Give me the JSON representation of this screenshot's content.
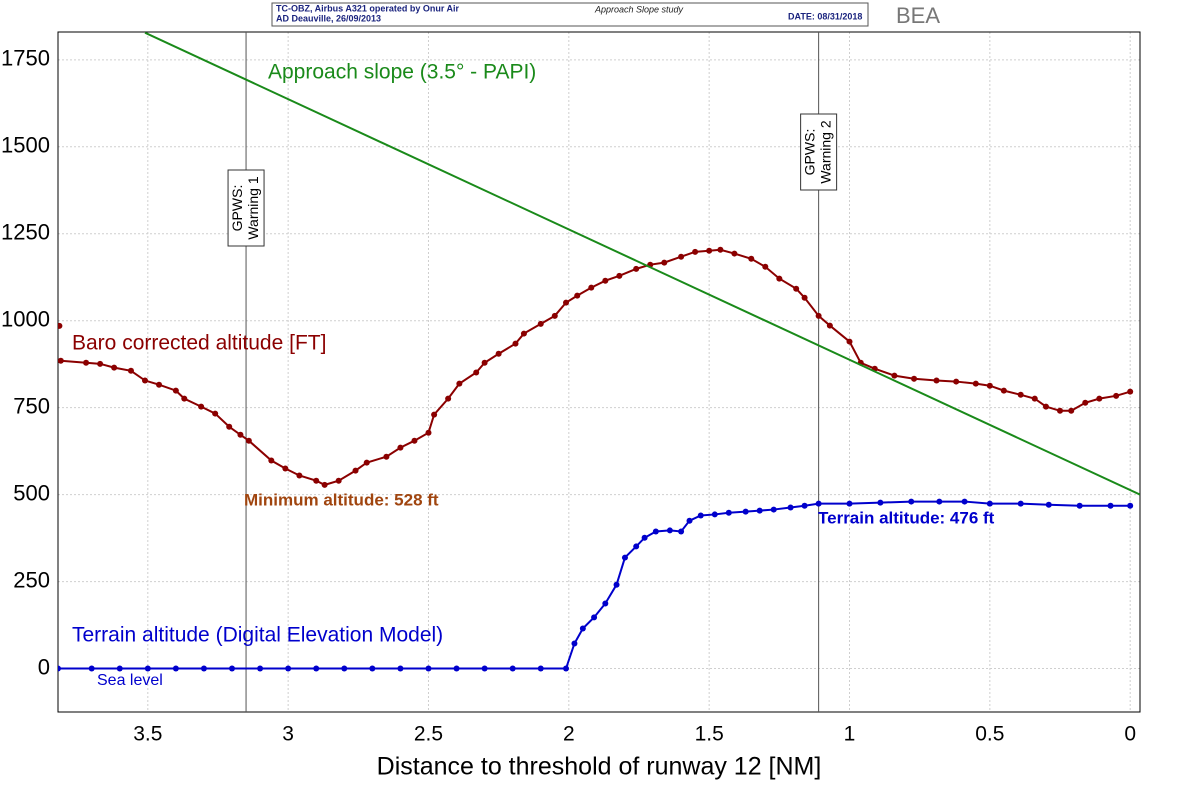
{
  "header": {
    "line1": "TC-OBZ, Airbus A321 operated by Onur Air",
    "line2": "AD Deauville, 26/09/2013",
    "study": "Approach Slope study",
    "date": "DATE: 08/31/2018",
    "logo": "BEA"
  },
  "chart_data": {
    "type": "line",
    "xlabel": "Distance to threshold of runway 12 [NM]",
    "xlim": [
      3.82,
      -0.035
    ],
    "ylim": [
      -125,
      1830
    ],
    "xticks": [
      3.5,
      3,
      2.5,
      2,
      1.5,
      1,
      0.5,
      0
    ],
    "yticks": [
      0,
      250,
      500,
      750,
      1000,
      1250,
      1500,
      1750
    ],
    "grid": true,
    "series": [
      {
        "name": "Baro corrected altitude [FT]",
        "color": "#8b0000",
        "marker": true,
        "x": [
          3.815,
          3.81,
          3.81,
          3.72,
          3.67,
          3.62,
          3.56,
          3.51,
          3.46,
          3.4,
          3.37,
          3.31,
          3.26,
          3.21,
          3.17,
          3.14,
          3.06,
          3.01,
          2.96,
          2.9,
          2.87,
          2.82,
          2.76,
          2.72,
          2.65,
          2.6,
          2.55,
          2.5,
          2.48,
          2.43,
          2.39,
          2.33,
          2.3,
          2.25,
          2.19,
          2.16,
          2.1,
          2.05,
          2.01,
          1.97,
          1.92,
          1.87,
          1.82,
          1.76,
          1.71,
          1.66,
          1.6,
          1.55,
          1.5,
          1.46,
          1.41,
          1.35,
          1.3,
          1.25,
          1.19,
          1.16,
          1.11,
          1.07,
          1.0,
          0.96,
          0.91,
          0.84,
          0.77,
          0.69,
          0.62,
          0.55,
          0.5,
          0.45,
          0.39,
          0.34,
          0.3,
          0.25,
          0.21,
          0.16,
          0.11,
          0.05,
          0.0
        ],
        "values": [
          985,
          null,
          885,
          879,
          876,
          865,
          856,
          828,
          816,
          799,
          776,
          753,
          733,
          695,
          672,
          655,
          598,
          575,
          555,
          540,
          528,
          540,
          569,
          592,
          609,
          635,
          655,
          678,
          730,
          776,
          819,
          851,
          879,
          905,
          934,
          963,
          991,
          1014,
          1052,
          1072,
          1095,
          1115,
          1129,
          1149,
          1161,
          1167,
          1184,
          1198,
          1201,
          1204,
          1193,
          1178,
          1155,
          1121,
          1092,
          1066,
          1014,
          986,
          940,
          879,
          862,
          842,
          833,
          828,
          825,
          819,
          813,
          799,
          787,
          776,
          753,
          741,
          741,
          764,
          776,
          784,
          796
        ]
      },
      {
        "name": "Terrain altitude (Digital Elevation Model)",
        "color": "#0000cc",
        "marker": true,
        "x": [
          3.82,
          3.7,
          3.6,
          3.5,
          3.4,
          3.3,
          3.2,
          3.1,
          3.0,
          2.9,
          2.8,
          2.7,
          2.6,
          2.5,
          2.4,
          2.3,
          2.2,
          2.1,
          2.01,
          1.98,
          1.95,
          1.91,
          1.87,
          1.83,
          1.8,
          1.76,
          1.73,
          1.69,
          1.64,
          1.6,
          1.57,
          1.53,
          1.48,
          1.43,
          1.37,
          1.32,
          1.27,
          1.21,
          1.16,
          1.11,
          1.0,
          0.89,
          0.78,
          0.68,
          0.59,
          0.5,
          0.39,
          0.29,
          0.18,
          0.07,
          0.0
        ],
        "values": [
          0,
          0,
          0,
          0,
          0,
          0,
          0,
          0,
          0,
          0,
          0,
          0,
          0,
          0,
          0,
          0,
          0,
          0,
          0,
          72,
          115,
          147,
          187,
          241,
          319,
          351,
          376,
          394,
          397,
          394,
          425,
          440,
          443,
          448,
          451,
          454,
          457,
          463,
          468,
          474,
          474,
          477,
          480,
          480,
          480,
          474,
          474,
          471,
          468,
          468,
          468
        ]
      },
      {
        "name": "Approach slope (3.5° - PAPI)",
        "color": "#1a8a1a",
        "marker": false,
        "x": [
          3.51,
          -0.035
        ],
        "values": [
          1828,
          500
        ]
      }
    ],
    "vlines": [
      {
        "x": 3.15,
        "label": [
          "GPWS:",
          "Warning 1"
        ]
      },
      {
        "x": 1.11,
        "label": [
          "GPWS:",
          "Warning 2"
        ]
      }
    ],
    "annotations": [
      {
        "text": "Minimum altitude: 528 ft",
        "color": "#a0450f"
      },
      {
        "text": "Terrain altitude: 476 ft",
        "color": "#0000cc"
      },
      {
        "text": "Sea level",
        "color": "#0000cc"
      }
    ]
  }
}
